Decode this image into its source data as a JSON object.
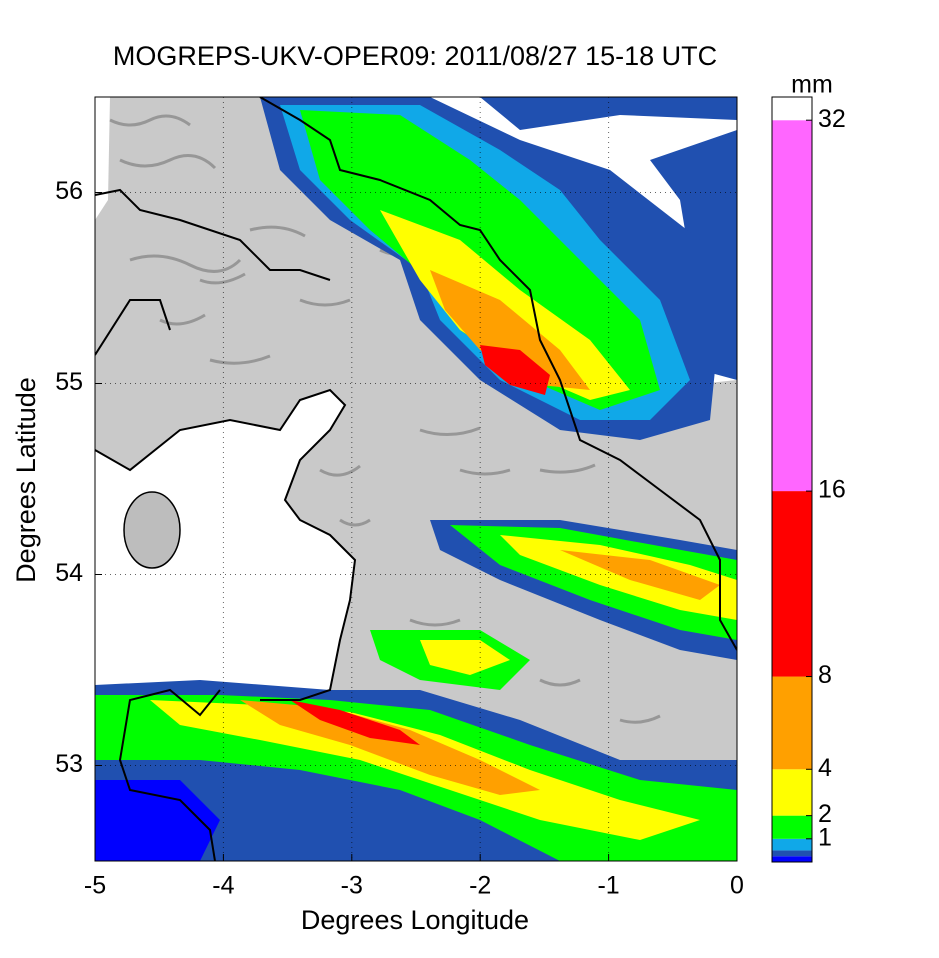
{
  "chart_data": {
    "type": "map",
    "title": "MOGREPS-UKV-OPER09: 2011/08/27 15-18 UTC",
    "xlabel": "Degrees Longitude",
    "ylabel": "Degrees Latitude",
    "xlim": [
      -5,
      0
    ],
    "ylim": [
      52.5,
      56.5
    ],
    "xticks": [
      -5,
      -4,
      -3,
      -2,
      -1,
      0
    ],
    "yticks": [
      53,
      54,
      55,
      56
    ],
    "grid": true,
    "colorbar": {
      "title": "mm",
      "ticks": [
        1,
        2,
        4,
        8,
        16,
        32
      ],
      "bounds": [
        0,
        0.25,
        0.5,
        1,
        2,
        4,
        8,
        16,
        32,
        33
      ],
      "colors": [
        "#0000ff",
        "#2050b0",
        "#10a8e8",
        "#00ff00",
        "#ffff00",
        "#ffa000",
        "#ff0000",
        "#ff66ff",
        "#ffffff"
      ]
    }
  }
}
